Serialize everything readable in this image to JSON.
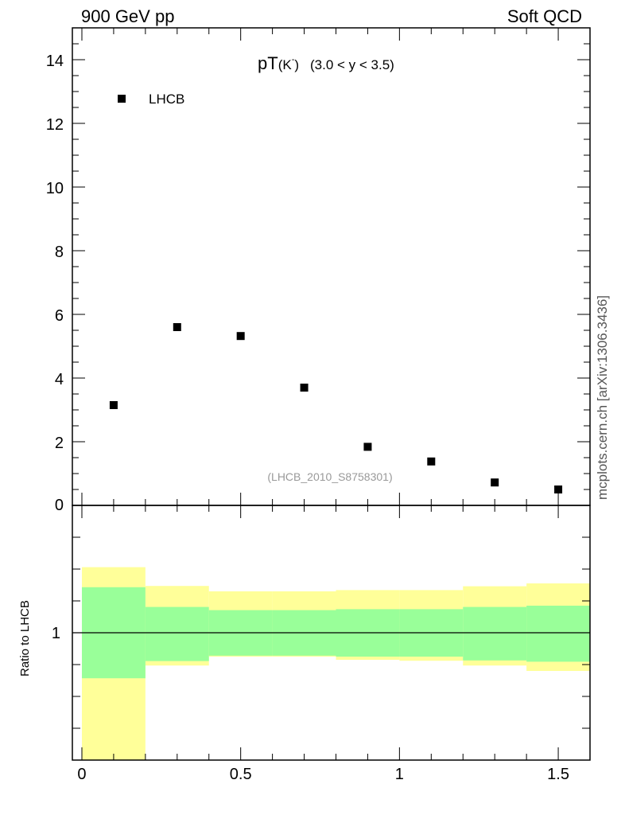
{
  "header": {
    "left_label": "900 GeV pp",
    "right_label": "Soft QCD",
    "side_label": "mcplots.cern.ch [arXiv:1306.3436]"
  },
  "chart_data": [
    {
      "type": "scatter",
      "title_main": "pT",
      "title_particle": "(K",
      "title_superscript": "-",
      "title_close": ")",
      "title_range": "(3.0 < y < 3.5)",
      "watermark": "(LHCB_2010_S8758301)",
      "xlim": [
        -0.03,
        1.6
      ],
      "ylim": [
        0,
        15
      ],
      "yticks": [
        0,
        2,
        4,
        6,
        8,
        10,
        12,
        14
      ],
      "ytick_labels": [
        "0",
        "2",
        "4",
        "6",
        "8",
        "10",
        "12",
        "14"
      ],
      "legend": {
        "position": "top-left",
        "label": "LHCB"
      },
      "series": [
        {
          "name": "LHCB",
          "x": [
            0.1,
            0.3,
            0.5,
            0.7,
            0.9,
            1.1,
            1.3,
            1.5
          ],
          "y": [
            3.15,
            5.6,
            5.32,
            3.7,
            1.84,
            1.38,
            0.72,
            0.5
          ]
        }
      ]
    },
    {
      "type": "area",
      "ylabel": "Ratio to LHCB",
      "xlim": [
        -0.03,
        1.6
      ],
      "ylim": [
        0.6,
        1.4
      ],
      "yticks": [
        1
      ],
      "ytick_labels": [
        "1"
      ],
      "xticks": [
        0,
        0.5,
        1,
        1.5
      ],
      "xtick_labels": [
        "0",
        "0.5",
        "1",
        "1.5"
      ],
      "reference_line": 1,
      "bins": [
        0,
        0.2,
        0.4,
        0.6,
        0.8,
        1.0,
        1.2,
        1.4,
        1.6
      ],
      "band_colors": {
        "outer": "#ffff99",
        "inner": "#99ff99"
      },
      "outer_band": {
        "low": [
          0.6,
          0.897,
          0.925,
          0.925,
          0.915,
          0.912,
          0.897,
          0.88
        ],
        "high": [
          1.206,
          1.147,
          1.13,
          1.13,
          1.134,
          1.134,
          1.146,
          1.155
        ]
      },
      "inner_band": {
        "low": [
          0.857,
          0.911,
          0.928,
          0.928,
          0.925,
          0.925,
          0.913,
          0.909
        ],
        "high": [
          1.143,
          1.081,
          1.071,
          1.071,
          1.074,
          1.074,
          1.081,
          1.085
        ]
      }
    }
  ]
}
